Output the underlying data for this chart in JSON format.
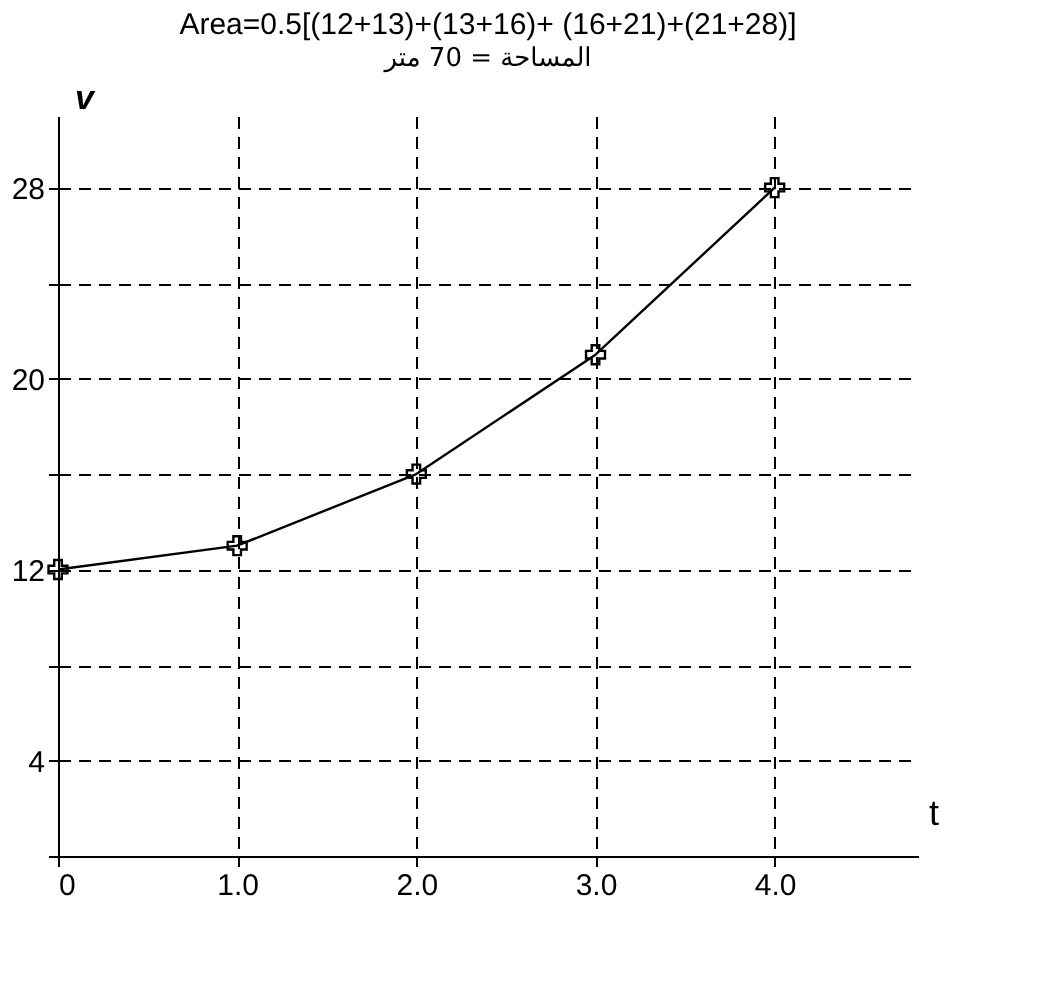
{
  "chart_data": {
    "type": "line",
    "title": "Area=0.5[(12+13)+(13+16)+ (16+21)+(21+28)]",
    "subtitle": "المساحة = 70 متر",
    "xlabel": "t",
    "ylabel": "v",
    "x": [
      0,
      1,
      2,
      3,
      4
    ],
    "series": [
      {
        "color": "#000000",
        "values": [
          12,
          13,
          16,
          21,
          28
        ]
      }
    ],
    "xlim": [
      0,
      4.8
    ],
    "ylim": [
      0,
      31
    ],
    "xticks": [
      {
        "value": 0,
        "label": "0"
      },
      {
        "value": 1,
        "label": "1.0"
      },
      {
        "value": 2,
        "label": "2.0"
      },
      {
        "value": 3,
        "label": "3.0"
      },
      {
        "value": 4,
        "label": "4.0"
      }
    ],
    "yticks": [
      {
        "value": 0,
        "label": null
      },
      4,
      {
        "value": 8,
        "label": null
      },
      12,
      {
        "value": 16,
        "label": null
      },
      20,
      {
        "value": 24,
        "label": null
      },
      28
    ],
    "grid": true,
    "marker": "cross",
    "line_style": "solid"
  }
}
